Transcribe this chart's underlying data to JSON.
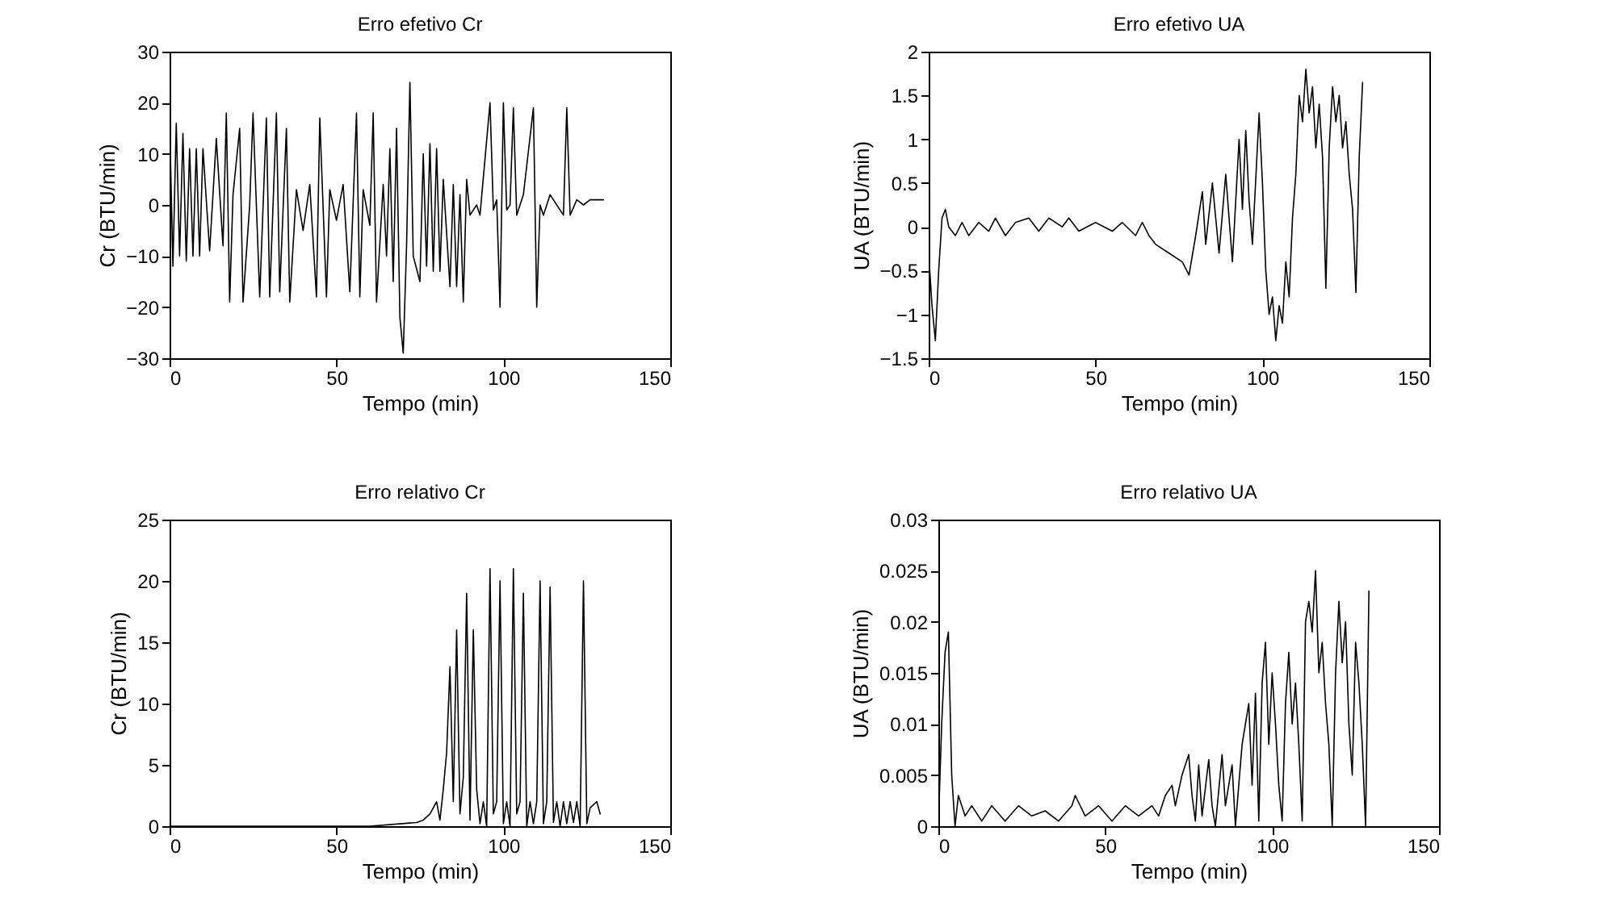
{
  "chart_data": [
    {
      "type": "line",
      "title": "Erro efetivo Cr",
      "xlabel": "Tempo (min)",
      "ylabel": "Cr (BTU/min)",
      "xlim": [
        0,
        150
      ],
      "xticks": [
        0,
        50,
        100,
        150
      ],
      "ylim": [
        -30,
        30
      ],
      "yticks": [
        -30,
        -20,
        -10,
        0,
        10,
        20,
        30
      ],
      "x": [
        0,
        1,
        2,
        3,
        4,
        5,
        6,
        7,
        8,
        9,
        10,
        12,
        14,
        16,
        17,
        18,
        19,
        21,
        22,
        24,
        25,
        27,
        29,
        30,
        32,
        33,
        35,
        36,
        38,
        40,
        42,
        44,
        45,
        47,
        48,
        50,
        52,
        54,
        56,
        57,
        58,
        60,
        61,
        62,
        64,
        65,
        66,
        67,
        68,
        69,
        70,
        71,
        72,
        73,
        75,
        76,
        77,
        78,
        79,
        80,
        81,
        82,
        84,
        85,
        86,
        87,
        88,
        89,
        90,
        92,
        93,
        96,
        97,
        98,
        99,
        100,
        101,
        102,
        103,
        104,
        106,
        109,
        110,
        111,
        112,
        114,
        116,
        118,
        119,
        120,
        122,
        124,
        126,
        130
      ],
      "series": [
        {
          "color": "#000000",
          "values": [
            17,
            -12,
            16,
            -10,
            14,
            -11,
            11,
            -10,
            11,
            -10,
            11,
            -9,
            13,
            -8,
            18,
            -19,
            2,
            15,
            -19,
            0,
            18,
            -18,
            17,
            -18,
            18,
            -17,
            15,
            -19,
            3,
            -5,
            4,
            -18,
            17,
            -18,
            3,
            -3,
            4,
            -17,
            18,
            -18,
            3,
            -4,
            18,
            -19,
            4,
            -10,
            11,
            -15,
            15,
            -22,
            -29,
            -8,
            24,
            -10,
            -15,
            10,
            -12,
            12,
            -13,
            11,
            -13,
            5,
            -16,
            4,
            -16,
            2,
            -19,
            5,
            -2,
            0,
            -2,
            20,
            -1,
            1,
            -20,
            20,
            -1,
            0,
            19,
            -2,
            2,
            19,
            -20,
            0,
            -2,
            2,
            0,
            -2,
            19,
            -2,
            1,
            0,
            1,
            1
          ]
        }
      ]
    },
    {
      "type": "line",
      "title": "Erro efetivo UA",
      "xlabel": "Tempo (min)",
      "ylabel": "UA (BTU/min)",
      "xlim": [
        0,
        150
      ],
      "xticks": [
        0,
        50,
        100,
        150
      ],
      "ylim": [
        -1.5,
        2
      ],
      "yticks": [
        -1.5,
        -1,
        -0.5,
        0,
        0.5,
        1,
        1.5,
        2
      ],
      "x": [
        0,
        1,
        2,
        3,
        4,
        5,
        6,
        8,
        10,
        12,
        15,
        18,
        20,
        23,
        26,
        30,
        33,
        36,
        40,
        42,
        45,
        50,
        55,
        58,
        62,
        64,
        66,
        68,
        72,
        76,
        78,
        80,
        82,
        83,
        85,
        87,
        89,
        91,
        93,
        94,
        95,
        96,
        97,
        99,
        100,
        101,
        102,
        103,
        104,
        105,
        106,
        107,
        108,
        109,
        110,
        111,
        112,
        113,
        114,
        115,
        116,
        117,
        118,
        119,
        120,
        121,
        122,
        123,
        124,
        125,
        126,
        127,
        128,
        129,
        130
      ],
      "series": [
        {
          "color": "#000000",
          "values": [
            -0.3,
            -0.9,
            -1.3,
            -0.5,
            0.1,
            0.2,
            0,
            -0.1,
            0.05,
            -0.1,
            0.05,
            -0.05,
            0.1,
            -0.1,
            0.05,
            0.1,
            -0.05,
            0.1,
            0,
            0.1,
            -0.05,
            0.05,
            -0.05,
            0.05,
            -0.1,
            0.05,
            -0.1,
            -0.2,
            -0.3,
            -0.4,
            -0.55,
            -0.1,
            0.4,
            -0.2,
            0.5,
            -0.3,
            0.6,
            -0.4,
            1,
            0.2,
            1.1,
            0.3,
            -0.2,
            1.3,
            0.5,
            -0.5,
            -1,
            -0.8,
            -1.3,
            -0.9,
            -1.1,
            -0.4,
            -0.8,
            0.1,
            0.6,
            1.5,
            1.2,
            1.8,
            1.3,
            1.6,
            0.9,
            1.4,
            0.8,
            -0.7,
            0.9,
            1.6,
            1.2,
            1.5,
            0.9,
            1.2,
            0.6,
            0.2,
            -0.75,
            0.8,
            1.65
          ]
        }
      ]
    },
    {
      "type": "line",
      "title": "Erro relativo Cr",
      "xlabel": "Tempo (min)",
      "ylabel": "Cr (BTU/min)",
      "xlim": [
        0,
        150
      ],
      "xticks": [
        0,
        50,
        100,
        150
      ],
      "ylim": [
        0,
        25
      ],
      "yticks": [
        0,
        5,
        10,
        15,
        20,
        25
      ],
      "x": [
        0,
        20,
        40,
        60,
        74,
        76,
        78,
        80,
        81,
        82,
        83,
        84,
        85,
        86,
        87,
        88,
        89,
        90,
        91,
        92,
        93,
        94,
        95,
        96,
        97,
        98,
        99,
        100,
        101,
        102,
        103,
        104,
        105,
        106,
        107,
        108,
        109,
        110,
        111,
        112,
        113,
        114,
        115,
        116,
        117,
        118,
        119,
        120,
        121,
        122,
        123,
        124,
        125,
        126,
        128,
        129
      ],
      "series": [
        {
          "color": "#000000",
          "values": [
            0,
            0,
            0,
            0,
            0.3,
            0.5,
            1,
            2,
            0.5,
            3,
            6,
            13,
            2,
            16,
            1,
            4,
            19,
            0.5,
            16,
            3,
            0.2,
            2,
            0,
            21,
            1,
            2,
            20,
            0.2,
            2,
            0,
            21,
            1,
            2,
            19,
            0,
            2,
            0.2,
            2,
            20,
            0.2,
            2,
            19.5,
            0.3,
            2,
            0,
            2,
            0.2,
            2,
            0.3,
            2,
            0,
            20,
            0.2,
            1.5,
            2,
            1
          ]
        }
      ]
    },
    {
      "type": "line",
      "title": "Erro relativo UA",
      "xlabel": "Tempo (min)",
      "ylabel": "UA (BTU/min)",
      "xlim": [
        0,
        150
      ],
      "xticks": [
        0,
        50,
        100,
        150
      ],
      "ylim": [
        0,
        0.03
      ],
      "yticks": [
        0,
        0.005,
        0.01,
        0.015,
        0.02,
        0.025,
        0.03
      ],
      "x": [
        0,
        1,
        2,
        3,
        4,
        5,
        6,
        8,
        10,
        13,
        16,
        20,
        24,
        28,
        32,
        36,
        40,
        41,
        44,
        48,
        52,
        56,
        60,
        64,
        66,
        68,
        70,
        71,
        73,
        75,
        76,
        77,
        78,
        79,
        81,
        82,
        83,
        85,
        86,
        88,
        89,
        91,
        93,
        94,
        95,
        96,
        97,
        98,
        99,
        100,
        101,
        102,
        103,
        104,
        105,
        106,
        107,
        108,
        109,
        110,
        111,
        112,
        113,
        114,
        115,
        116,
        117,
        118,
        119,
        120,
        121,
        122,
        123,
        124,
        125,
        126,
        127,
        128,
        129
      ],
      "series": [
        {
          "color": "#000000",
          "values": [
            0,
            0.01,
            0.017,
            0.019,
            0.005,
            0,
            0.003,
            0.001,
            0.002,
            0.0005,
            0.002,
            0.0005,
            0.002,
            0.001,
            0.0015,
            0.0005,
            0.002,
            0.003,
            0.001,
            0.002,
            0.0005,
            0.002,
            0.001,
            0.002,
            0.001,
            0.003,
            0.004,
            0.002,
            0.005,
            0.007,
            0.003,
            0.0005,
            0.006,
            0.001,
            0.0065,
            0.002,
            0,
            0.007,
            0.002,
            0.006,
            0,
            0.008,
            0.012,
            0.004,
            0.013,
            0.0005,
            0.014,
            0.018,
            0.008,
            0.015,
            0.01,
            0.004,
            0.0005,
            0.012,
            0.017,
            0.01,
            0.014,
            0.008,
            0.0005,
            0.02,
            0.022,
            0.019,
            0.025,
            0.015,
            0.018,
            0.012,
            0.008,
            0,
            0.015,
            0.022,
            0.016,
            0.02,
            0.01,
            0.005,
            0.018,
            0.014,
            0.008,
            0,
            0.023
          ]
        }
      ]
    }
  ]
}
